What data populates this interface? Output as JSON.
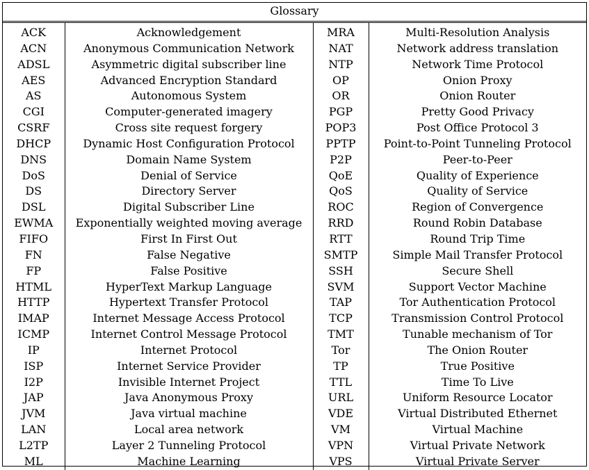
{
  "title": "Glossary",
  "rows": [
    {
      "a1": "ACK",
      "d1": "Acknowledgement",
      "a2": "MRA",
      "d2": "Multi-Resolution Analysis"
    },
    {
      "a1": "ACN",
      "d1": "Anonymous Communication Network",
      "a2": "NAT",
      "d2": "Network address translation"
    },
    {
      "a1": "ADSL",
      "d1": "Asymmetric digital subscriber line",
      "a2": "NTP",
      "d2": "Network Time Protocol"
    },
    {
      "a1": "AES",
      "d1": "Advanced Encryption Standard",
      "a2": "OP",
      "d2": "Onion Proxy"
    },
    {
      "a1": "AS",
      "d1": "Autonomous System",
      "a2": "OR",
      "d2": "Onion Router"
    },
    {
      "a1": "CGI",
      "d1": "Computer-generated imagery",
      "a2": "PGP",
      "d2": "Pretty Good Privacy"
    },
    {
      "a1": "CSRF",
      "d1": "Cross site request forgery",
      "a2": "POP3",
      "d2": "Post Office Protocol 3"
    },
    {
      "a1": "DHCP",
      "d1": "Dynamic Host Configuration Protocol",
      "a2": "PPTP",
      "d2": "Point-to-Point Tunneling Protocol"
    },
    {
      "a1": "DNS",
      "d1": "Domain Name System",
      "a2": "P2P",
      "d2": "Peer-to-Peer"
    },
    {
      "a1": "DoS",
      "d1": "Denial of Service",
      "a2": "QoE",
      "d2": "Quality of Experience"
    },
    {
      "a1": "DS",
      "d1": "Directory Server",
      "a2": "QoS",
      "d2": "Quality of Service"
    },
    {
      "a1": "DSL",
      "d1": "Digital Subscriber Line",
      "a2": "ROC",
      "d2": "Region of Convergence"
    },
    {
      "a1": "EWMA",
      "d1": "Exponentially weighted moving average",
      "a2": "RRD",
      "d2": "Round Robin Database"
    },
    {
      "a1": "FIFO",
      "d1": "First In First Out",
      "a2": "RTT",
      "d2": "Round Trip Time"
    },
    {
      "a1": "FN",
      "d1": "False Negative",
      "a2": "SMTP",
      "d2": "Simple Mail Transfer Protocol"
    },
    {
      "a1": "FP",
      "d1": "False Positive",
      "a2": "SSH",
      "d2": "Secure Shell"
    },
    {
      "a1": "HTML",
      "d1": "HyperText Markup Language",
      "a2": "SVM",
      "d2": "Support Vector Machine"
    },
    {
      "a1": "HTTP",
      "d1": "Hypertext Transfer Protocol",
      "a2": "TAP",
      "d2": "Tor Authentication Protocol"
    },
    {
      "a1": "IMAP",
      "d1": "Internet Message Access Protocol",
      "a2": "TCP",
      "d2": "Transmission Control Protocol"
    },
    {
      "a1": "ICMP",
      "d1": "Internet Control Message Protocol",
      "a2": "TMT",
      "d2": "Tunable mechanism of Tor"
    },
    {
      "a1": "IP",
      "d1": "Internet Protocol",
      "a2": "Tor",
      "d2": "The Onion Router"
    },
    {
      "a1": "ISP",
      "d1": "Internet Service Provider",
      "a2": "TP",
      "d2": "True Positive"
    },
    {
      "a1": "I2P",
      "d1": "Invisible Internet Project",
      "a2": "TTL",
      "d2": "Time To Live"
    },
    {
      "a1": "JAP",
      "d1": "Java Anonymous Proxy",
      "a2": "URL",
      "d2": "Uniform Resource Locator"
    },
    {
      "a1": "JVM",
      "d1": "Java virtual machine",
      "a2": "VDE",
      "d2": "Virtual Distributed Ethernet"
    },
    {
      "a1": "LAN",
      "d1": "Local area network",
      "a2": "VM",
      "d2": "Virtual Machine"
    },
    {
      "a1": "L2TP",
      "d1": "Layer 2 Tunneling Protocol",
      "a2": "VPN",
      "d2": "Virtual Private Network"
    },
    {
      "a1": "ML",
      "d1": "Machine Learning",
      "a2": "VPS",
      "d2": "Virtual Private Server"
    }
  ]
}
